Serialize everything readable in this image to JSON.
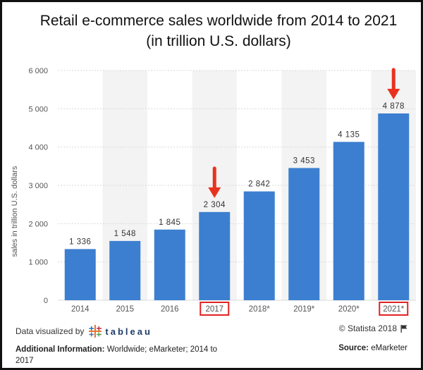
{
  "title_line1": "Retail e-commerce sales worldwide from 2014 to 2021",
  "title_line2": "(in trillion U.S. dollars)",
  "footer": {
    "visualized_by": "Data visualized by",
    "tableau_word": "tableau",
    "copyright": "© Statista 2018",
    "additional_info_label": "Additional Information:",
    "additional_info_text": "Worldwide; eMarketer; 2014 to 2017",
    "source_label": "Source:",
    "source_text": "eMarketer"
  },
  "colors": {
    "bar": "#3c7fd0",
    "band": "#f3f3f3",
    "grid": "#d9d9d9",
    "highlight_box": "#e22222",
    "arrow": "#e8321f"
  },
  "chart_data": {
    "type": "bar",
    "categories": [
      "2014",
      "2015",
      "2016",
      "2017",
      "2018*",
      "2019*",
      "2020*",
      "2021*"
    ],
    "values": [
      1336,
      1548,
      1845,
      2304,
      2842,
      3453,
      4135,
      4878
    ],
    "value_labels": [
      "1 336",
      "1 548",
      "1 845",
      "2 304",
      "2 842",
      "3 453",
      "4 135",
      "4 878"
    ],
    "title": "Retail e-commerce sales worldwide from 2014 to 2021",
    "subtitle": "(in trillion U.S. dollars)",
    "xlabel": "",
    "ylabel": "sales in trillion U.S. dollars",
    "ylim": [
      0,
      6000
    ],
    "yticks": [
      0,
      1000,
      2000,
      3000,
      4000,
      5000,
      6000
    ],
    "ytick_labels": [
      "0",
      "1 000",
      "2 000",
      "3 000",
      "4 000",
      "5 000",
      "6 000"
    ],
    "grid": true,
    "highlighted_categories": [
      "2017",
      "2021*"
    ]
  }
}
